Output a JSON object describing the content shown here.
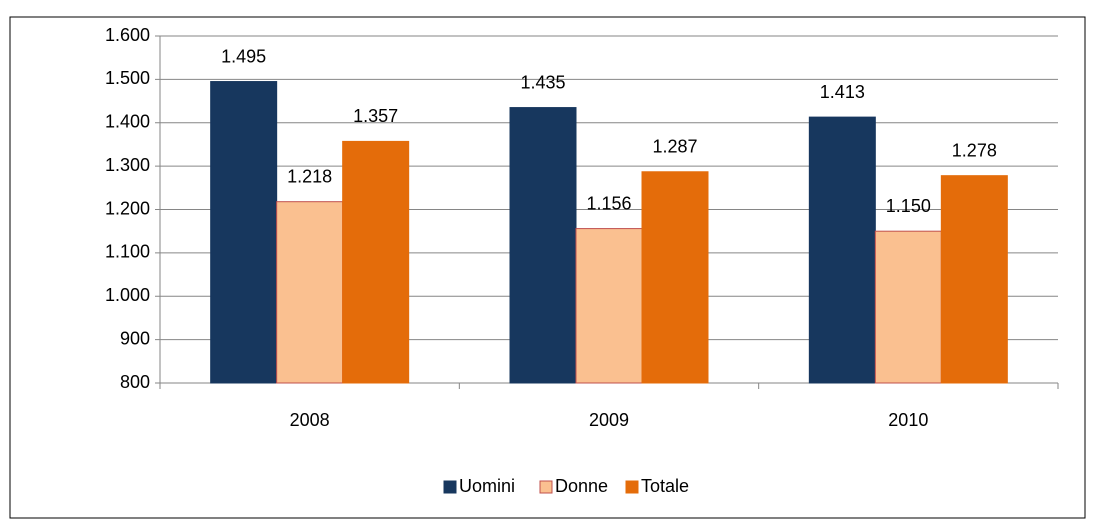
{
  "chart_data": {
    "type": "bar",
    "categories": [
      "2008",
      "2009",
      "2010"
    ],
    "series": [
      {
        "name": "Uomini",
        "color": "#17375e",
        "values": [
          1495,
          1435,
          1413
        ],
        "value_labels": [
          "1.495",
          "1.435",
          "1.413"
        ]
      },
      {
        "name": "Donne",
        "color": "#fac090",
        "values": [
          1218,
          1156,
          1150
        ],
        "value_labels": [
          "1.218",
          "1.156",
          "1.150"
        ]
      },
      {
        "name": "Totale",
        "color": "#e46c0a",
        "values": [
          1357,
          1287,
          1278
        ],
        "value_labels": [
          "1.357",
          "1.287",
          "1.278"
        ]
      }
    ],
    "ylim": [
      800,
      1600
    ],
    "yticks": [
      800,
      900,
      {
        "value": 1000,
        "label": "1.000"
      },
      {
        "value": 1100,
        "label": "1.100"
      },
      {
        "value": 1200,
        "label": "1.200"
      },
      {
        "value": 1300,
        "label": "1.300"
      },
      {
        "value": 1400,
        "label": "1.400"
      },
      {
        "value": 1500,
        "label": "1.500"
      },
      {
        "value": 1600,
        "label": "1.600"
      }
    ],
    "grid": true,
    "legend": "bottom"
  }
}
